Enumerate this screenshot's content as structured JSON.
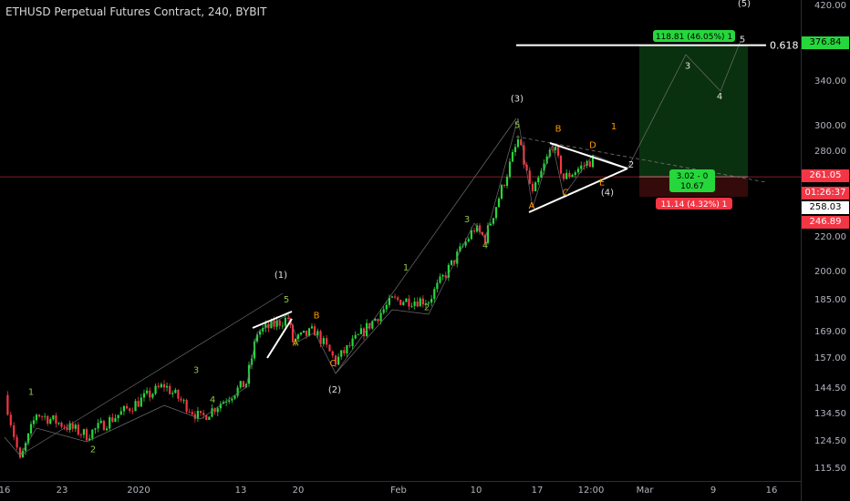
{
  "title": "ETHUSD Perpetual Futures Contract, 240, BYBIT",
  "colors": {
    "up": "#26d73c",
    "down": "#f23645",
    "fib_line": "#ffffff",
    "wave_label_green": "#8bc34a",
    "wave_label_orange": "#ff9800",
    "wave_label_white": "#e0e0e0",
    "long_target_zone": "#0c3a12",
    "long_stop_zone": "#3a0b0b"
  },
  "chart_data": {
    "type": "candlestick",
    "symbol": "ETHUSD",
    "interval": "240",
    "exchange": "BYBIT",
    "y_scale": "log",
    "ylim": [
      113,
      430
    ],
    "y_ticks": [
      "420.00",
      "376.84",
      "340.00",
      "300.00",
      "280.00",
      "261.05",
      "258.03",
      "246.89",
      "220.00",
      "200.00",
      "185.00",
      "169.00",
      "157.00",
      "144.50",
      "134.50",
      "124.50",
      "115.50"
    ],
    "x_ticks": [
      "16",
      "23",
      "2020",
      "13",
      "20",
      "Feb",
      "10",
      "17",
      "12:00",
      "Mar",
      "9",
      "16"
    ],
    "price_path_key_points": [
      {
        "x": "16",
        "price": 142
      },
      {
        "x": "17",
        "price": 118
      },
      {
        "x": "19",
        "price": 135
      },
      {
        "x": "23",
        "price": 127
      },
      {
        "x": "Jan 1",
        "price": 146
      },
      {
        "x": "Jan 3",
        "price": 133
      },
      {
        "x": "13",
        "price": 147
      },
      {
        "x": "14",
        "price": 169
      },
      {
        "x": "18",
        "price": 176
      },
      {
        "x": "19",
        "price": 165
      },
      {
        "x": "20",
        "price": 170
      },
      {
        "x": "22",
        "price": 156
      },
      {
        "x": "Feb 1",
        "price": 185
      },
      {
        "x": "Feb 4",
        "price": 185
      },
      {
        "x": "10",
        "price": 226
      },
      {
        "x": "13",
        "price": 220
      },
      {
        "x": "15",
        "price": 289
      },
      {
        "x": "17",
        "price": 248
      },
      {
        "x": "18",
        "price": 286
      },
      {
        "x": "19",
        "price": 260
      },
      {
        "x": "12:00",
        "price": 274
      }
    ],
    "wave_labels": [
      {
        "label": "1",
        "price": 142,
        "color": "green"
      },
      {
        "label": "2",
        "price": 121,
        "color": "green"
      },
      {
        "label": "3",
        "price": 151,
        "color": "green"
      },
      {
        "label": "4",
        "price": 139,
        "color": "green"
      },
      {
        "label": "5",
        "price": 184,
        "color": "green"
      },
      {
        "label": "(1)",
        "price": 197,
        "color": "white"
      },
      {
        "label": "A",
        "price": 163,
        "color": "orange"
      },
      {
        "label": "B",
        "price": 176,
        "color": "orange"
      },
      {
        "label": "C",
        "price": 154,
        "color": "orange"
      },
      {
        "label": "(2)",
        "price": 143,
        "color": "white"
      },
      {
        "label": "1",
        "price": 201,
        "color": "green"
      },
      {
        "label": "2",
        "price": 180,
        "color": "green"
      },
      {
        "label": "3",
        "price": 230,
        "color": "green"
      },
      {
        "label": "4",
        "price": 214,
        "color": "green"
      },
      {
        "label": "5",
        "price": 299,
        "color": "green"
      },
      {
        "label": "(3)",
        "price": 322,
        "color": "white"
      },
      {
        "label": "A",
        "price": 239,
        "color": "orange"
      },
      {
        "label": "B",
        "price": 296,
        "color": "orange"
      },
      {
        "label": "C",
        "price": 248,
        "color": "orange"
      },
      {
        "label": "D",
        "price": 283,
        "color": "orange"
      },
      {
        "label": "E",
        "price": 255,
        "color": "orange"
      },
      {
        "label": "(4)",
        "price": 248,
        "color": "white"
      },
      {
        "label": "1",
        "price": 298,
        "color": "orange"
      },
      {
        "label": "2",
        "price": 268,
        "color": "white"
      },
      {
        "label": "3",
        "price": 353,
        "color": "white"
      },
      {
        "label": "4",
        "price": 324,
        "color": "white"
      },
      {
        "label": "5",
        "price": 380,
        "color": "white"
      },
      {
        "label": "(5)",
        "price": 420,
        "color": "white"
      }
    ],
    "fib_level": {
      "label": "0.618",
      "price": 376.84
    },
    "position": {
      "type": "long",
      "entry": 261.05,
      "target": 376.84,
      "stop": 246.89,
      "target_label": "118.81 (46.05%) 1",
      "stop_label": "11.14 (4.32%) 1",
      "ratio_label_line1": "3.02 - 0",
      "ratio_label_line2": "10.67"
    },
    "last_price": "258.03",
    "countdown": "01:26:37"
  },
  "price_axis": {
    "target_tag": "376.84",
    "entry_tag": "261.05",
    "countdown_tag": "01:26:37",
    "last_tag": "258.03",
    "stop_tag": "246.89"
  }
}
